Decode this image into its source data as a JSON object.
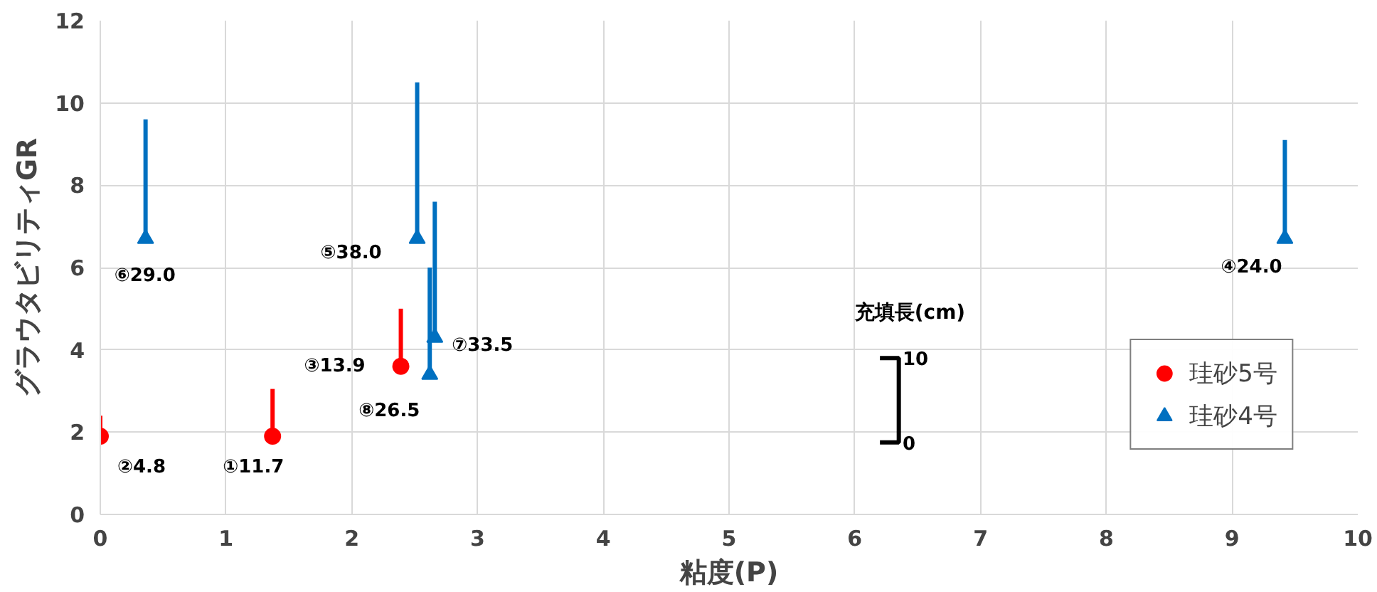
{
  "chart_data": {
    "type": "scatter",
    "xlabel": "粘度(P)",
    "ylabel": "グラウタビリティGR",
    "xlim": [
      0,
      10
    ],
    "xticks": [
      0,
      1,
      2,
      3,
      4,
      5,
      6,
      7,
      8,
      9,
      10
    ],
    "ylim": [
      0,
      12
    ],
    "yticks": [
      0,
      2,
      4,
      6,
      8,
      10,
      12
    ],
    "grid": true,
    "legend": "bottom right",
    "series": [
      {
        "name": "珪砂5号",
        "color": "#ff0000",
        "marker": "circle",
        "x": [
          1.37,
          0.0,
          2.39
        ],
        "values": [
          1.9,
          1.9,
          3.6
        ],
        "errors": [
          [
            1.9,
            3.05
          ],
          [
            1.9,
            2.4
          ],
          [
            3.6,
            5.0
          ]
        ],
        "value_labels": [
          "①11.7",
          "②4.8",
          "③13.9"
        ]
      },
      {
        "name": "珪砂4号",
        "color": "#0070c0",
        "marker": "triangle",
        "x": [
          9.42,
          2.52,
          0.36,
          2.66,
          2.62
        ],
        "values": [
          6.7,
          6.7,
          6.7,
          4.3,
          3.4
        ],
        "errors": [
          [
            6.7,
            9.1
          ],
          [
            6.7,
            10.5
          ],
          [
            6.7,
            9.6
          ],
          [
            4.3,
            7.6
          ],
          [
            3.4,
            6.0
          ]
        ],
        "value_labels": [
          "④24.0",
          "⑤38.0",
          "⑥29.0",
          "⑦33.5",
          "⑧26.5"
        ]
      }
    ],
    "annotations": [
      "充填長(cm)",
      "10",
      "0"
    ]
  }
}
